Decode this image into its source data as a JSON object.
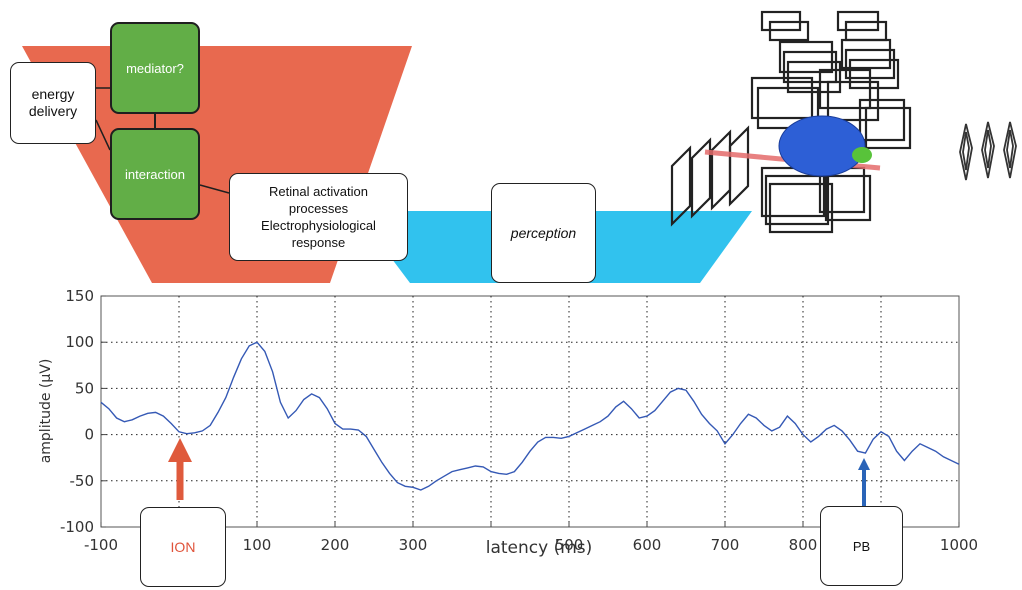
{
  "diagram": {
    "energy_delivery": "energy\ndelivery",
    "mediator": "mediator?",
    "interaction": "interaction",
    "retinal": "Retinal activation\nprocesses\nElectrophysiological\nresponse",
    "perception": "perception",
    "ion_label": "ION",
    "pb_label": "PB"
  },
  "colors": {
    "funnel_orange": "#e8694f",
    "funnel_cyan": "#31c2ee",
    "box_green": "#62ae47",
    "ion_text": "#e0533a",
    "ion_arrow": "#df5a3c",
    "pb_arrow": "#2a64b8",
    "trace": "#3559b5",
    "brain_blue": "#2d5fd6",
    "brain_green": "#58c33a"
  },
  "chart_data": {
    "type": "line",
    "title": "",
    "xlabel": "latency (ms)",
    "ylabel": "amplitude (µV)",
    "xlim": [
      -100,
      1000
    ],
    "ylim": [
      -100,
      150
    ],
    "xticks": [
      -100,
      0,
      100,
      200,
      300,
      400,
      500,
      600,
      700,
      800,
      900,
      1000
    ],
    "yticks": [
      -100,
      -50,
      0,
      50,
      100,
      150
    ],
    "xtick_labels": [
      "-100",
      "",
      "100",
      "200",
      "300",
      "",
      "500",
      "600",
      "700",
      "800",
      "",
      "1000"
    ],
    "ytick_labels": [
      "-100",
      "-50",
      "0",
      "50",
      "100",
      "150"
    ],
    "grid": true,
    "grid_style": "dotted",
    "series": [
      {
        "x": [
          -100,
          -90,
          -80,
          -70,
          -60,
          -50,
          -40,
          -30,
          -20,
          -10,
          0,
          10,
          20,
          30,
          40,
          50,
          60,
          70,
          80,
          90,
          100,
          110,
          120,
          130,
          140,
          150,
          160,
          170,
          180,
          190,
          200,
          210,
          220,
          230,
          240,
          250,
          260,
          270,
          280,
          290,
          300,
          310,
          320,
          330,
          340,
          350,
          360,
          370,
          380,
          390,
          400,
          410,
          420,
          430,
          440,
          450,
          460,
          470,
          480,
          490,
          500,
          510,
          520,
          530,
          540,
          550,
          560,
          570,
          580,
          590,
          600,
          610,
          620,
          630,
          640,
          650,
          660,
          670,
          680,
          690,
          700,
          710,
          720,
          730,
          740,
          750,
          760,
          770,
          780,
          790,
          800,
          810,
          820,
          830,
          840,
          850,
          860,
          870,
          880,
          890,
          900,
          910,
          920,
          930,
          940,
          950,
          960,
          970,
          980,
          990,
          1000
        ],
        "y": [
          35,
          28,
          18,
          14,
          16,
          20,
          23,
          24,
          20,
          12,
          3,
          1,
          2,
          4,
          10,
          24,
          40,
          62,
          82,
          96,
          100,
          90,
          68,
          35,
          18,
          26,
          38,
          44,
          40,
          28,
          12,
          6,
          6,
          5,
          -2,
          -16,
          -30,
          -42,
          -52,
          -56,
          -57,
          -60,
          -56,
          -50,
          -45,
          -40,
          -38,
          -36,
          -34,
          -35,
          -40,
          -42,
          -43,
          -40,
          -30,
          -18,
          -8,
          -3,
          -3,
          -4,
          -2,
          2,
          6,
          10,
          14,
          20,
          30,
          36,
          28,
          18,
          20,
          26,
          36,
          46,
          50,
          48,
          36,
          22,
          12,
          4,
          -10,
          0,
          12,
          22,
          18,
          10,
          4,
          8,
          20,
          12,
          0,
          -8,
          -2,
          6,
          10,
          4,
          -6,
          -18,
          -20,
          -5,
          3,
          -2,
          -18,
          -28,
          -18,
          -10,
          -14,
          -18,
          -24,
          -28,
          -32
        ]
      }
    ]
  }
}
